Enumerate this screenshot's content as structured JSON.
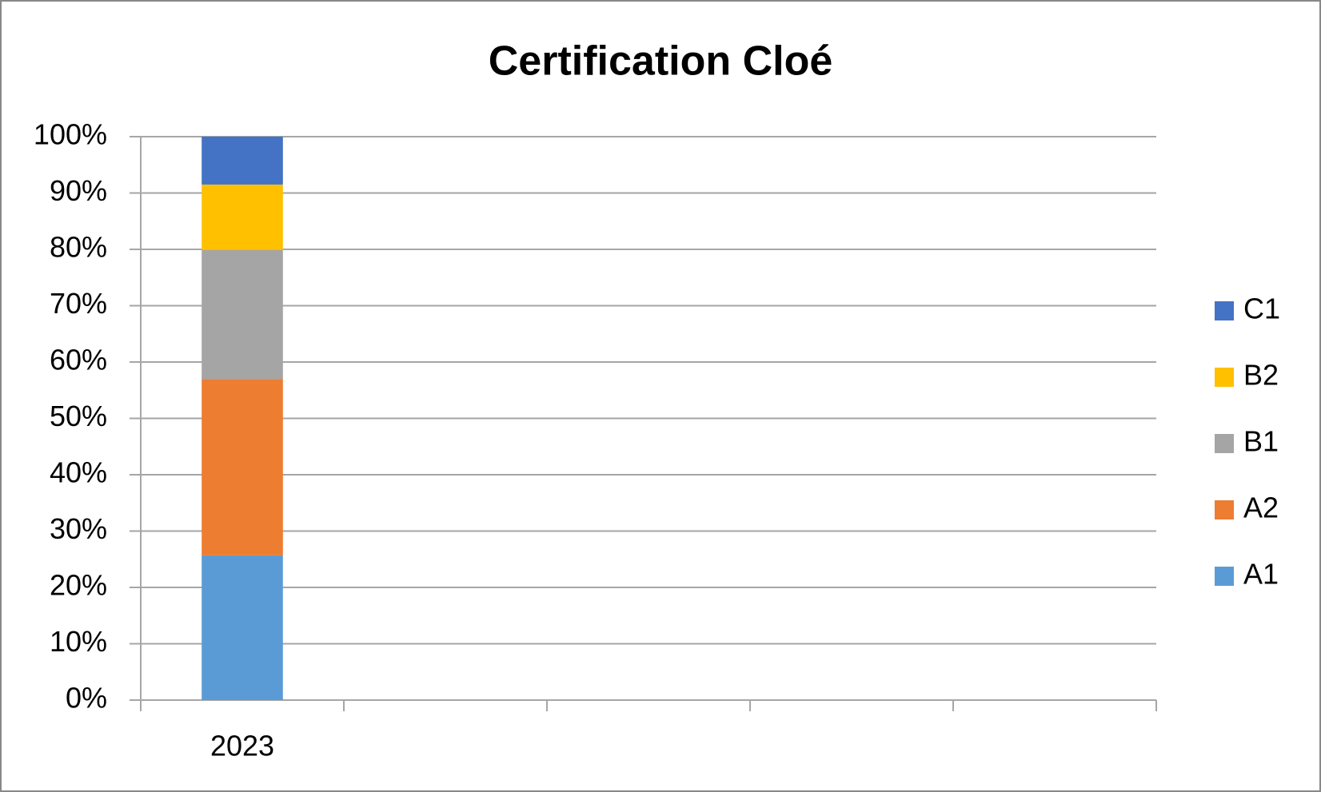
{
  "chart_data": {
    "type": "stacked_bar",
    "title": "Certification Cloé",
    "categories": [
      "2023",
      null,
      null,
      null,
      null
    ],
    "series": [
      {
        "name": "A1",
        "color": "#5b9bd5",
        "values": [
          25.7,
          null,
          null,
          null,
          null
        ]
      },
      {
        "name": "A2",
        "color": "#ed7d31",
        "values": [
          31.3,
          null,
          null,
          null,
          null
        ]
      },
      {
        "name": "B1",
        "color": "#a5a5a5",
        "values": [
          22.9,
          null,
          null,
          null,
          null
        ]
      },
      {
        "name": "B2",
        "color": "#ffc000",
        "values": [
          11.6,
          null,
          null,
          null,
          null
        ]
      },
      {
        "name": "C1",
        "color": "#4472c4",
        "values": [
          8.5,
          null,
          null,
          null,
          null
        ]
      }
    ],
    "ylim": [
      0,
      100
    ],
    "yticks": [
      {
        "value": 0,
        "label": "0%"
      },
      {
        "value": 10,
        "label": "10%"
      },
      {
        "value": 20,
        "label": "20%"
      },
      {
        "value": 30,
        "label": "30%"
      },
      {
        "value": 40,
        "label": "40%"
      },
      {
        "value": 50,
        "label": "50%"
      },
      {
        "value": 60,
        "label": "60%"
      },
      {
        "value": 70,
        "label": "70%"
      },
      {
        "value": 80,
        "label": "80%"
      },
      {
        "value": 90,
        "label": "90%"
      },
      {
        "value": 100,
        "label": "100%"
      }
    ],
    "grid": true,
    "legend": "right"
  }
}
